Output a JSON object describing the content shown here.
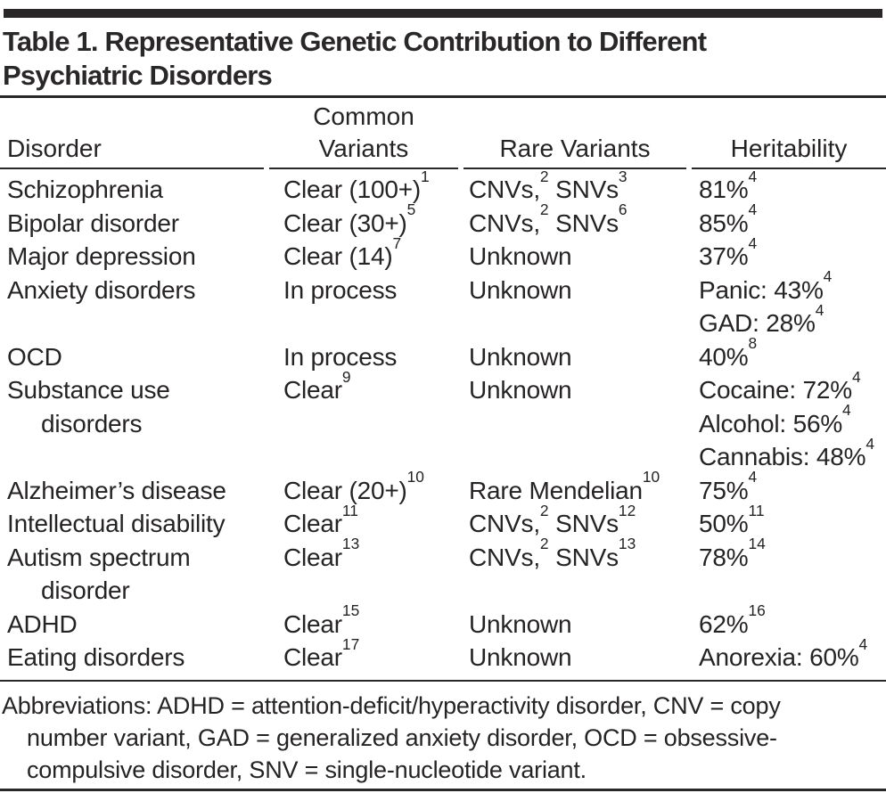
{
  "page": {
    "background_color": "#ffffff",
    "text_color": "#262324",
    "accent_bar_color": "#2a2728",
    "rule_color": "#2a2728"
  },
  "table": {
    "title_lines": [
      "Table 1. Representative Genetic Contribution to Different",
      "Psychiatric Disorders"
    ],
    "header": {
      "disorder": "Disorder",
      "common_line1": "Common",
      "common_line2": "Variants",
      "rare": "Rare Variants",
      "heritability": "Heritability"
    },
    "rows": [
      {
        "disorder": [
          "Schizophrenia"
        ],
        "common": [
          "Clear (100+)^{1}"
        ],
        "rare": [
          "CNVs,^{2} SNVs^{3}"
        ],
        "heritability": [
          "81%^{4}"
        ]
      },
      {
        "disorder": [
          "Bipolar disorder"
        ],
        "common": [
          "Clear (30+)^{5}"
        ],
        "rare": [
          "CNVs,^{2} SNVs^{6}"
        ],
        "heritability": [
          "85%^{4}"
        ]
      },
      {
        "disorder": [
          "Major depression"
        ],
        "common": [
          "Clear (14)^{7}"
        ],
        "rare": [
          "Unknown"
        ],
        "heritability": [
          "37%^{4}"
        ]
      },
      {
        "disorder": [
          "Anxiety disorders"
        ],
        "common": [
          "In process"
        ],
        "rare": [
          "Unknown"
        ],
        "heritability": [
          "Panic: 43%^{4}",
          "GAD: 28%^{4}"
        ]
      },
      {
        "disorder": [
          "OCD"
        ],
        "common": [
          "In process"
        ],
        "rare": [
          "Unknown"
        ],
        "heritability": [
          "40%^{8}"
        ]
      },
      {
        "disorder": [
          "Substance use",
          "disorders"
        ],
        "common": [
          "Clear^{9}"
        ],
        "rare": [
          "Unknown"
        ],
        "heritability": [
          "Cocaine: 72%^{4}",
          "Alcohol: 56%^{4}",
          "Cannabis: 48%^{4}"
        ]
      },
      {
        "disorder": [
          "Alzheimer’s disease"
        ],
        "common": [
          "Clear (20+)^{10}"
        ],
        "rare": [
          "Rare Mendelian^{10}"
        ],
        "heritability": [
          "75%^{4}"
        ]
      },
      {
        "disorder": [
          "Intellectual disability"
        ],
        "common": [
          "Clear^{11}"
        ],
        "rare": [
          "CNVs,^{2} SNVs^{12}"
        ],
        "heritability": [
          "50%^{11}"
        ]
      },
      {
        "disorder": [
          "Autism spectrum",
          "disorder"
        ],
        "common": [
          "Clear^{13}"
        ],
        "rare": [
          "CNVs,^{2} SNVs^{13}"
        ],
        "heritability": [
          "78%^{14}"
        ]
      },
      {
        "disorder": [
          "ADHD"
        ],
        "common": [
          "Clear^{15}"
        ],
        "rare": [
          "Unknown"
        ],
        "heritability": [
          "62%^{16}"
        ]
      },
      {
        "disorder": [
          "Eating disorders"
        ],
        "common": [
          "Clear^{17}"
        ],
        "rare": [
          "Unknown"
        ],
        "heritability": [
          "Anorexia: 60%^{4}"
        ]
      }
    ],
    "footnote_lines": [
      "Abbreviations: ADHD = attention-deficit/hyperactivity disorder, CNV = copy",
      "number variant, GAD = generalized anxiety disorder, OCD = obsessive-",
      "compulsive disorder, SNV = single-nucleotide variant."
    ]
  }
}
